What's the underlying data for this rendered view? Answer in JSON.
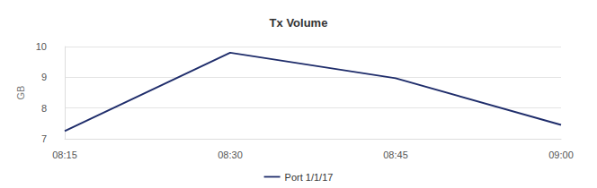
{
  "chart_data": {
    "type": "line",
    "title": "Tx Volume",
    "y_label": "GB",
    "categories": [
      "08:15",
      "08:30",
      "08:45",
      "09:00"
    ],
    "series": [
      {
        "name": "Port 1/1/17",
        "color": "#1f2d6b",
        "values": [
          7.25,
          9.8,
          8.97,
          7.45
        ]
      }
    ],
    "ylim": [
      7,
      10
    ],
    "yticks": [
      7,
      8,
      9,
      10
    ],
    "grid": true,
    "legend": "bottom"
  }
}
